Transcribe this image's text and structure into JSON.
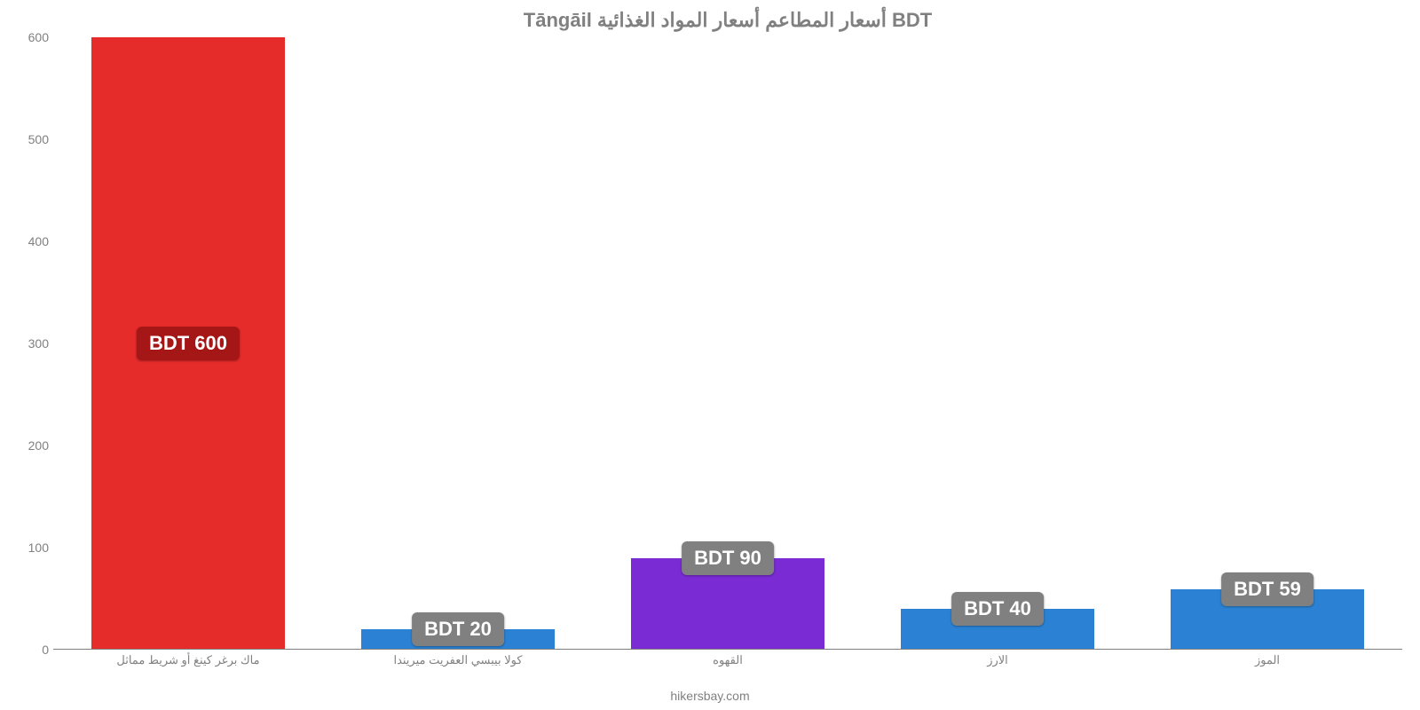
{
  "chart": {
    "type": "bar",
    "title": "Tāngāil أسعار المطاعم أسعار المواد الغذائية BDT",
    "title_fontsize": 22,
    "title_color": "#808080",
    "credit": "hikersbay.com",
    "credit_fontsize": 14,
    "credit_color": "#808080",
    "background_color": "#ffffff",
    "axis_color": "#808080",
    "ylim": [
      0,
      600
    ],
    "ytick_step": 100,
    "yticks": [
      0,
      100,
      200,
      300,
      400,
      500,
      600
    ],
    "tick_fontsize": 14,
    "xlabel_fontsize": 13,
    "bar_width": 0.72,
    "value_badge": {
      "fontsize": 22,
      "text_color": "#ffffff",
      "radius": 6
    },
    "items": [
      {
        "category": "ماك برغر كينغ أو شريط مماثل",
        "value": 600,
        "value_label": "BDT 600",
        "bar_color": "#e62b2b",
        "badge_bg": "#a51616",
        "badge_pos": "middle"
      },
      {
        "category": "كولا بيبسي العفريت ميريندا",
        "value": 20,
        "value_label": "BDT 20",
        "bar_color": "#2b82d4",
        "badge_bg": "#808080",
        "badge_pos": "above"
      },
      {
        "category": "القهوه",
        "value": 90,
        "value_label": "BDT 90",
        "bar_color": "#7a2bd4",
        "badge_bg": "#808080",
        "badge_pos": "above"
      },
      {
        "category": "الارز",
        "value": 40,
        "value_label": "BDT 40",
        "bar_color": "#2b82d4",
        "badge_bg": "#808080",
        "badge_pos": "above"
      },
      {
        "category": "الموز",
        "value": 59,
        "value_label": "BDT 59",
        "bar_color": "#2b82d4",
        "badge_bg": "#808080",
        "badge_pos": "above"
      }
    ]
  }
}
